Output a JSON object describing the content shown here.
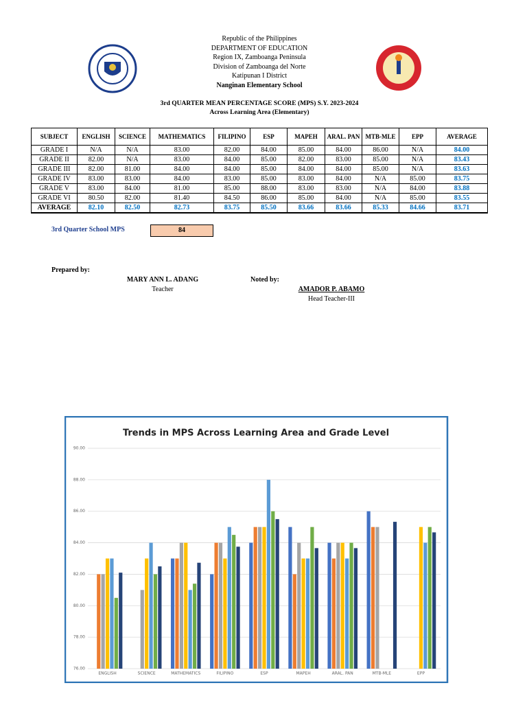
{
  "header": {
    "lines": [
      "Republic of the Philippines",
      "DEPARTMENT OF EDUCATION",
      "Region IX, Zamboanga Peninsula",
      "Division of Zamboanga del Norte",
      "Katipunan I District"
    ],
    "school": "Nanginan Elementary School",
    "title": "3rd QUARTER MEAN PERCENTAGE SCORE (MPS) S.Y. 2023-2024",
    "subtitle": "Across Learning Area (Elementary)"
  },
  "table": {
    "columns": [
      "SUBJECT",
      "ENGLISH",
      "SCIENCE",
      "MATHEMATICS",
      "FILIPINO",
      "ESP",
      "MAPEH",
      "ARAL. PAN",
      "MTB-MLE",
      "EPP",
      "AVERAGE"
    ],
    "rows": [
      [
        "GRADE I",
        "N/A",
        "N/A",
        "83.00",
        "82.00",
        "84.00",
        "85.00",
        "84.00",
        "86.00",
        "N/A",
        "84.00"
      ],
      [
        "GRADE II",
        "82.00",
        "N/A",
        "83.00",
        "84.00",
        "85.00",
        "82.00",
        "83.00",
        "85.00",
        "N/A",
        "83.43"
      ],
      [
        "GRADE III",
        "82.00",
        "81.00",
        "84.00",
        "84.00",
        "85.00",
        "84.00",
        "84.00",
        "85.00",
        "N/A",
        "83.63"
      ],
      [
        "GRADE IV",
        "83.00",
        "83.00",
        "84.00",
        "83.00",
        "85.00",
        "83.00",
        "84.00",
        "N/A",
        "85.00",
        "83.75"
      ],
      [
        "GRADE V",
        "83.00",
        "84.00",
        "81.00",
        "85.00",
        "88.00",
        "83.00",
        "83.00",
        "N/A",
        "84.00",
        "83.88"
      ],
      [
        "GRADE VI",
        "80.50",
        "82.00",
        "81.40",
        "84.50",
        "86.00",
        "85.00",
        "84.00",
        "N/A",
        "85.00",
        "83.55"
      ],
      [
        "AVERAGE",
        "82.10",
        "82.50",
        "82.73",
        "83.75",
        "85.50",
        "83.66",
        "83.66",
        "85.33",
        "84.66",
        "83.71"
      ]
    ]
  },
  "school_mps": {
    "label": "3rd Quarter School MPS",
    "value": 84
  },
  "signatures": {
    "prepared_label": "Prepared by:",
    "prepared_name": "MARY ANN L. ADANG",
    "prepared_role": "Teacher",
    "noted_label": "Noted by:",
    "noted_name": "AMADOR P. ABAMO",
    "noted_role": "Head Teacher-III"
  },
  "chart_data": {
    "type": "bar",
    "title": "Trends in MPS Across Learning Area and Grade Level",
    "categories": [
      "ENGLISH",
      "SCIENCE",
      "MATHEMATICS",
      "FILIPINO",
      "ESP",
      "MAPEH",
      "ARAL. PAN",
      "MTB-MLE",
      "EPP"
    ],
    "series": [
      {
        "color": "#4472c4",
        "values": [
          null,
          null,
          83,
          82,
          84,
          85,
          84,
          86,
          null
        ]
      },
      {
        "color": "#ed7d31",
        "values": [
          82,
          null,
          83,
          84,
          85,
          82,
          83,
          85,
          null
        ]
      },
      {
        "color": "#a5a5a5",
        "values": [
          82,
          81,
          84,
          84,
          85,
          84,
          84,
          85,
          null
        ]
      },
      {
        "color": "#ffc000",
        "values": [
          83,
          83,
          84,
          83,
          85,
          83,
          84,
          null,
          85
        ]
      },
      {
        "color": "#5b9bd5",
        "values": [
          83,
          84,
          81,
          85,
          88,
          83,
          83,
          null,
          84
        ]
      },
      {
        "color": "#70ad47",
        "values": [
          80.5,
          82,
          81.4,
          84.5,
          86,
          85,
          84,
          null,
          85
        ]
      },
      {
        "color": "#264478",
        "values": [
          82.1,
          82.5,
          82.73,
          83.75,
          85.5,
          83.66,
          83.66,
          85.33,
          84.66
        ]
      }
    ],
    "ylim": [
      76,
      90
    ],
    "yticks": [
      {
        "value": 76,
        "label": "76.00"
      },
      {
        "value": 78,
        "label": "78.00"
      },
      {
        "value": 80,
        "label": "80.00"
      },
      {
        "value": 82,
        "label": "82.00"
      },
      {
        "value": 84,
        "label": "84.00"
      },
      {
        "value": 86,
        "label": "86.00"
      },
      {
        "value": 88,
        "label": "88.00"
      },
      {
        "value": 90,
        "label": "90.00"
      }
    ],
    "grid": true
  }
}
